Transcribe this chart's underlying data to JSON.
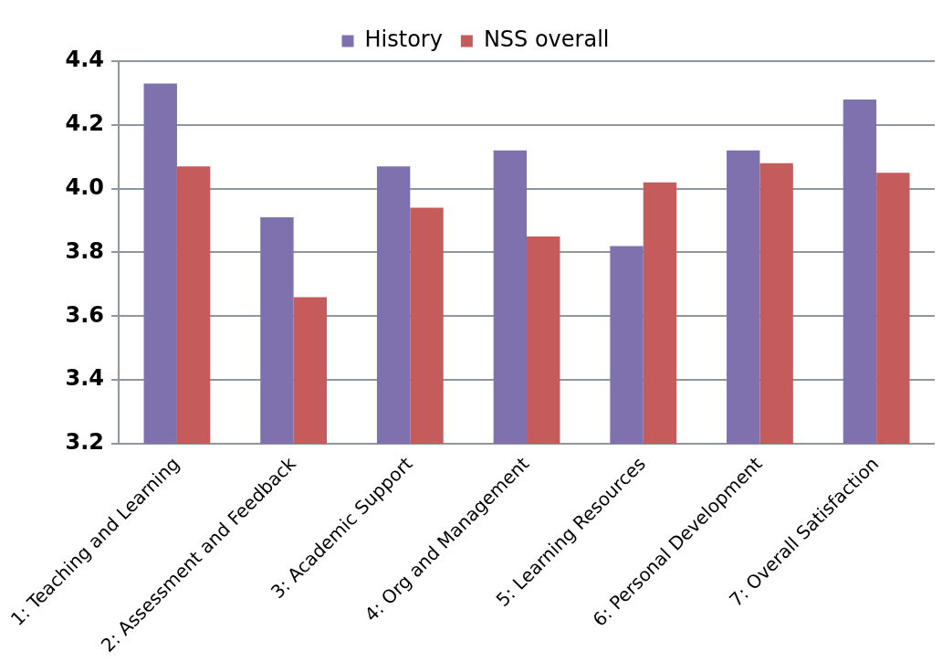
{
  "chart_data": {
    "type": "bar",
    "categories": [
      "1: Teaching and Learning",
      "2: Assessment and Feedback",
      "3: Academic Support",
      "4: Org and Management",
      "5: Learning Resources",
      "6: Personal Development",
      "7: Overall Satisfaction"
    ],
    "series": [
      {
        "name": "History",
        "color": "#7f71ae",
        "values": [
          4.33,
          3.91,
          4.07,
          4.12,
          3.82,
          4.12,
          4.28
        ]
      },
      {
        "name": "NSS overall",
        "color": "#c55c5b",
        "values": [
          4.07,
          3.66,
          3.94,
          3.85,
          4.02,
          4.08,
          4.05
        ]
      }
    ],
    "ylim": [
      3.2,
      4.4
    ],
    "yticks": [
      3.2,
      3.4,
      3.6,
      3.8,
      {
        "value": 4,
        "label": "4.0"
      },
      4.2,
      4.4
    ],
    "grid": "y",
    "legend": "top"
  }
}
